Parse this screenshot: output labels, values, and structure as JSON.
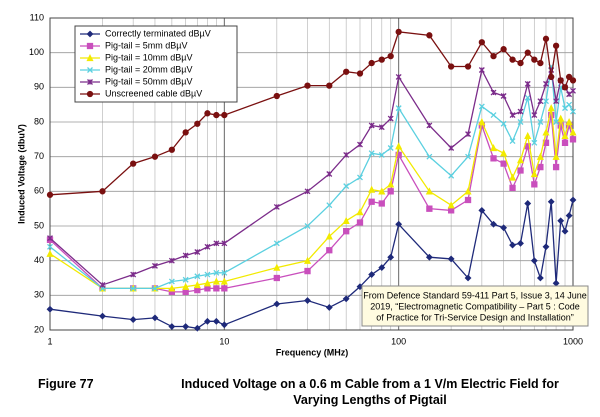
{
  "chart_data": {
    "type": "line",
    "x_label": "Frequency (MHz)",
    "y_label": "Induced Voltage (dbuV)",
    "caption_label": "Figure 77",
    "caption": "Induced Voltage on a 0.6 m Cable from a 1 V/m Electric Field for Varying Lengths of Pigtail",
    "annotation": [
      "From  Defence Standard 59-411 Part 5, Issue 3, 14 June",
      "2019, “Electromagnetic Compatibility – Part 5 : Code",
      "of Practice for Tri-Service Design and Installation”"
    ],
    "xlog": true,
    "grid": true,
    "legend": "upper left",
    "xlim": [
      1,
      1000
    ],
    "xticks": [
      1,
      10,
      100,
      1000
    ],
    "ylim": [
      20,
      110
    ],
    "yticks": [
      20,
      30,
      40,
      50,
      60,
      70,
      80,
      90,
      100,
      110
    ],
    "x": [
      1,
      2,
      3,
      4,
      5,
      6,
      7,
      8,
      9,
      10,
      20,
      30,
      40,
      50,
      60,
      70,
      80,
      90,
      100,
      150,
      200,
      250,
      300,
      350,
      400,
      450,
      500,
      550,
      600,
      650,
      700,
      750,
      800,
      850,
      900,
      950,
      1000
    ],
    "series": [
      {
        "name": "Correctly terminated  dBµV",
        "color": "#1f2a7a",
        "marker": "diamond",
        "values": [
          26,
          24,
          23,
          23.5,
          21,
          21,
          20.5,
          22.5,
          22.5,
          21.5,
          27.5,
          28.5,
          26.5,
          29,
          32.5,
          36,
          38,
          41,
          50.5,
          41,
          40.5,
          35,
          54.5,
          50.5,
          49.5,
          44.5,
          45,
          56.5,
          40,
          35,
          44,
          57,
          33.5,
          51.5,
          48.5,
          53,
          57.5
        ]
      },
      {
        "name": "Pig-tail = 5mm dBµV",
        "color": "#c94fbd",
        "marker": "square",
        "values": [
          46,
          32,
          32,
          32,
          31,
          31,
          31.5,
          32,
          32,
          32,
          35,
          37,
          43,
          48.5,
          51,
          57,
          56.5,
          60,
          70.5,
          55,
          54.5,
          57.5,
          79,
          69.5,
          68,
          61,
          66,
          73,
          62,
          67,
          74,
          82,
          67,
          79,
          74,
          79,
          75
        ]
      },
      {
        "name": "Pig-tail = 10mm dBµV",
        "color": "#f2ea00",
        "marker": "triangle",
        "values": [
          42,
          32,
          32,
          32,
          32,
          32.5,
          33,
          33.5,
          34,
          34,
          38,
          40,
          47,
          51.5,
          54,
          60.5,
          60,
          62,
          73,
          60,
          56,
          60,
          80,
          72.5,
          71,
          64,
          69,
          76,
          65,
          70,
          77,
          84,
          70,
          81,
          76,
          80,
          77
        ]
      },
      {
        "name": "Pig-tail = 20mm dBµV",
        "color": "#5bd0e0",
        "marker": "x",
        "values": [
          44,
          32,
          32,
          32,
          34,
          34.5,
          35.5,
          36,
          36.5,
          36.5,
          45,
          50,
          56,
          61.5,
          64,
          71,
          70.5,
          72.5,
          84,
          70,
          64.5,
          70,
          84.5,
          82,
          79.5,
          74.5,
          80,
          87,
          74,
          80,
          86,
          96,
          80,
          90,
          84,
          85,
          83
        ]
      },
      {
        "name": "Pig-tail = 50mm dBµV",
        "color": "#7b2c8a",
        "marker": "star",
        "values": [
          46.5,
          33,
          36,
          38.5,
          40,
          41.5,
          42.5,
          44,
          45,
          45,
          55.5,
          60,
          65,
          70.5,
          73.5,
          79,
          78.5,
          81,
          93,
          79,
          72.5,
          76.5,
          95,
          88.5,
          87.5,
          82,
          83,
          91,
          82,
          86,
          91,
          95,
          86,
          92,
          90,
          88,
          89
        ]
      },
      {
        "name": "Unscreened cable dBµV",
        "color": "#7a1010",
        "marker": "circle",
        "values": [
          59,
          60,
          68,
          70,
          72,
          77,
          79.5,
          82.5,
          82,
          82,
          87.5,
          90.5,
          90.5,
          94.5,
          94,
          97,
          98,
          99,
          106,
          105,
          96,
          96,
          103,
          99,
          101,
          98,
          97,
          100,
          98,
          97,
          104,
          93,
          102,
          92,
          90,
          93,
          92
        ]
      }
    ]
  }
}
